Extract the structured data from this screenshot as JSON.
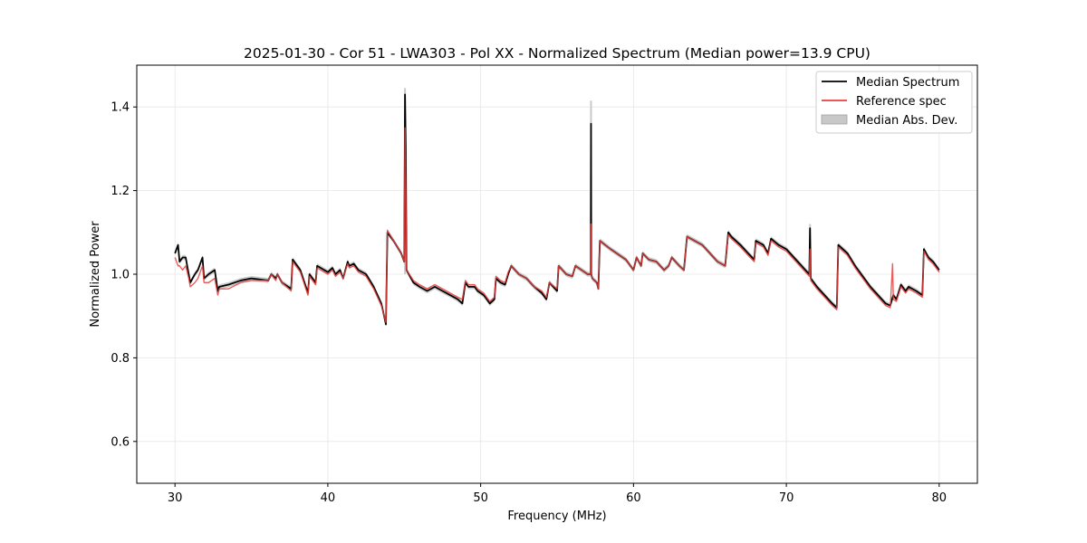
{
  "chart_data": {
    "type": "line",
    "title": "2025-01-30 - Cor 51 - LWA303 - Pol XX - Normalized Spectrum (Median power=13.9 CPU)",
    "xlabel": "Frequency (MHz)",
    "ylabel": "Normalized Power",
    "xlim": [
      27.5,
      82.5
    ],
    "ylim": [
      0.5,
      1.5
    ],
    "xticks": [
      30,
      40,
      50,
      60,
      70,
      80
    ],
    "yticks": [
      0.6,
      0.8,
      1.0,
      1.2,
      1.4
    ],
    "xtick_labels": [
      "30",
      "40",
      "50",
      "60",
      "70",
      "80"
    ],
    "ytick_labels": [
      "0.6",
      "0.8",
      "1.0",
      "1.2",
      "1.4"
    ],
    "grid": true,
    "legend_position": "top-right",
    "colors": {
      "median": "#000000",
      "reference": "#e8403c",
      "mad": "#c8c8c8"
    },
    "series": [
      {
        "name": "Median Spectrum",
        "x": [
          30.0,
          30.2,
          30.3,
          30.5,
          30.7,
          30.9,
          31.0,
          31.3,
          31.5,
          31.8,
          31.9,
          32.2,
          32.6,
          32.8,
          32.9,
          33.5,
          34.3,
          35.0,
          36.1,
          36.3,
          36.6,
          36.7,
          37.0,
          37.6,
          37.7,
          38.2,
          38.7,
          38.8,
          39.2,
          39.3,
          40.0,
          40.3,
          40.5,
          40.8,
          41.0,
          41.3,
          41.4,
          41.7,
          42.0,
          42.5,
          43.0,
          43.5,
          43.8,
          43.9,
          44.3,
          44.8,
          45.0,
          45.05,
          45.1,
          45.15,
          45.6,
          46.0,
          46.5,
          47.0,
          47.5,
          48.0,
          48.5,
          48.8,
          49.0,
          49.2,
          49.6,
          49.8,
          50.2,
          50.6,
          50.9,
          51.0,
          51.3,
          51.6,
          51.8,
          52.0,
          52.5,
          53.0,
          53.5,
          54.0,
          54.3,
          54.5,
          55.0,
          55.1,
          55.6,
          56.0,
          56.2,
          56.6,
          57.0,
          57.2,
          57.22,
          57.24,
          57.3,
          57.6,
          57.7,
          57.8,
          58.5,
          59.5,
          60.0,
          60.2,
          60.5,
          60.6,
          61.0,
          61.5,
          62.0,
          62.3,
          62.5,
          63.0,
          63.3,
          63.5,
          64.0,
          64.5,
          65.0,
          65.5,
          66.0,
          66.2,
          66.4,
          67.0,
          67.5,
          67.9,
          68.0,
          68.5,
          68.8,
          69.0,
          69.5,
          70.0,
          70.5,
          71.0,
          71.5,
          71.55,
          71.6,
          72.0,
          72.5,
          73.0,
          73.3,
          73.4,
          74.0,
          74.5,
          75.0,
          75.5,
          76.0,
          76.5,
          76.8,
          77.0,
          77.2,
          77.5,
          77.8,
          78.0,
          78.5,
          78.9,
          79.0,
          79.3,
          79.6,
          80.0
        ],
        "y": [
          1.05,
          1.07,
          1.03,
          1.04,
          1.04,
          1.0,
          0.98,
          1.0,
          1.01,
          1.04,
          0.99,
          1.0,
          1.01,
          0.96,
          0.97,
          0.975,
          0.985,
          0.99,
          0.985,
          1.0,
          0.99,
          1.0,
          0.98,
          0.965,
          1.035,
          1.01,
          0.955,
          1.0,
          0.98,
          1.02,
          1.005,
          1.015,
          1.0,
          1.01,
          0.99,
          1.03,
          1.02,
          1.025,
          1.01,
          1.0,
          0.97,
          0.93,
          0.88,
          1.1,
          1.08,
          1.05,
          1.03,
          1.43,
          1.3,
          1.01,
          0.98,
          0.97,
          0.96,
          0.97,
          0.96,
          0.95,
          0.94,
          0.93,
          0.98,
          0.97,
          0.97,
          0.96,
          0.95,
          0.93,
          0.94,
          0.99,
          0.98,
          0.975,
          1.0,
          1.02,
          1.0,
          0.99,
          0.97,
          0.955,
          0.94,
          0.98,
          0.96,
          1.02,
          1.0,
          0.995,
          1.02,
          1.01,
          1.0,
          1.0,
          1.36,
          1.0,
          0.99,
          0.98,
          0.965,
          1.08,
          1.06,
          1.035,
          1.01,
          1.04,
          1.02,
          1.05,
          1.035,
          1.03,
          1.01,
          1.02,
          1.04,
          1.02,
          1.01,
          1.09,
          1.08,
          1.07,
          1.05,
          1.03,
          1.02,
          1.1,
          1.09,
          1.07,
          1.05,
          1.035,
          1.08,
          1.07,
          1.05,
          1.085,
          1.07,
          1.06,
          1.04,
          1.02,
          1.0,
          1.11,
          0.99,
          0.97,
          0.95,
          0.93,
          0.92,
          1.07,
          1.05,
          1.02,
          0.995,
          0.97,
          0.95,
          0.93,
          0.925,
          0.95,
          0.94,
          0.975,
          0.96,
          0.97,
          0.96,
          0.95,
          1.06,
          1.04,
          1.03,
          1.01
        ]
      },
      {
        "name": "Reference spec",
        "x": [
          30.0,
          30.2,
          30.3,
          30.5,
          30.7,
          30.9,
          31.0,
          31.3,
          31.5,
          31.8,
          31.9,
          32.2,
          32.6,
          32.8,
          32.9,
          33.5,
          34.3,
          35.0,
          36.1,
          36.3,
          36.6,
          36.7,
          37.0,
          37.6,
          37.7,
          38.2,
          38.7,
          38.8,
          39.2,
          39.3,
          40.0,
          40.3,
          40.5,
          40.8,
          41.0,
          41.3,
          41.4,
          41.7,
          42.0,
          42.5,
          43.0,
          43.5,
          43.8,
          43.9,
          44.3,
          44.8,
          45.0,
          45.05,
          45.1,
          45.15,
          45.6,
          46.0,
          46.5,
          47.0,
          47.5,
          48.0,
          48.5,
          48.8,
          49.0,
          49.2,
          49.6,
          49.8,
          50.2,
          50.6,
          50.9,
          51.0,
          51.3,
          51.6,
          51.8,
          52.0,
          52.5,
          53.0,
          53.5,
          54.0,
          54.3,
          54.5,
          55.0,
          55.1,
          55.6,
          56.0,
          56.2,
          56.6,
          57.0,
          57.2,
          57.22,
          57.24,
          57.3,
          57.6,
          57.7,
          57.8,
          58.5,
          59.5,
          60.0,
          60.2,
          60.5,
          60.6,
          61.0,
          61.5,
          62.0,
          62.3,
          62.5,
          63.0,
          63.3,
          63.5,
          64.0,
          64.5,
          65.0,
          65.5,
          66.0,
          66.2,
          66.4,
          67.0,
          67.5,
          67.9,
          68.0,
          68.5,
          68.8,
          69.0,
          69.5,
          70.0,
          70.5,
          71.0,
          71.5,
          71.55,
          71.6,
          72.0,
          72.5,
          73.0,
          73.3,
          73.4,
          74.0,
          74.5,
          75.0,
          75.5,
          76.0,
          76.5,
          76.8,
          76.95,
          77.0,
          77.2,
          77.5,
          77.8,
          78.0,
          78.5,
          78.9,
          79.0,
          79.3,
          79.6,
          80.0
        ],
        "y": [
          1.04,
          1.02,
          1.02,
          1.01,
          1.02,
          0.99,
          0.97,
          0.98,
          0.99,
          1.02,
          0.98,
          0.98,
          0.99,
          0.95,
          0.965,
          0.965,
          0.98,
          0.985,
          0.985,
          1.0,
          0.985,
          1.0,
          0.98,
          0.96,
          1.03,
          1.005,
          0.95,
          0.995,
          0.975,
          1.015,
          1.0,
          1.01,
          0.995,
          1.005,
          0.99,
          1.025,
          1.015,
          1.02,
          1.005,
          0.995,
          0.965,
          0.925,
          0.885,
          1.105,
          1.08,
          1.05,
          1.03,
          1.35,
          1.2,
          1.01,
          0.985,
          0.975,
          0.965,
          0.975,
          0.965,
          0.955,
          0.945,
          0.94,
          0.985,
          0.975,
          0.975,
          0.965,
          0.955,
          0.935,
          0.945,
          0.995,
          0.985,
          0.98,
          1.005,
          1.02,
          1.0,
          0.99,
          0.97,
          0.96,
          0.945,
          0.98,
          0.965,
          1.02,
          1.0,
          0.995,
          1.02,
          1.01,
          1.0,
          1.0,
          1.12,
          1.0,
          0.99,
          0.98,
          0.965,
          1.08,
          1.06,
          1.035,
          1.01,
          1.04,
          1.02,
          1.05,
          1.035,
          1.03,
          1.01,
          1.02,
          1.04,
          1.02,
          1.01,
          1.09,
          1.08,
          1.07,
          1.05,
          1.03,
          1.02,
          1.095,
          1.085,
          1.065,
          1.045,
          1.03,
          1.075,
          1.065,
          1.045,
          1.08,
          1.065,
          1.055,
          1.035,
          1.015,
          0.995,
          1.06,
          0.985,
          0.965,
          0.945,
          0.925,
          0.915,
          1.065,
          1.045,
          1.015,
          0.99,
          0.965,
          0.945,
          0.925,
          0.92,
          1.025,
          0.94,
          0.935,
          0.97,
          0.955,
          0.965,
          0.955,
          0.945,
          1.055,
          1.035,
          1.025,
          1.005
        ]
      }
    ],
    "mad_band": {
      "name": "Median Abs. Dev.",
      "half_width": 0.006
    },
    "spike_bands": [
      {
        "x": 45.05,
        "y_max": 1.445
      },
      {
        "x": 57.22,
        "y_max": 1.415
      },
      {
        "x": 71.55,
        "y_max": 1.12
      }
    ]
  },
  "legend": {
    "items": [
      {
        "label": "Median Spectrum"
      },
      {
        "label": "Reference spec"
      },
      {
        "label": "Median Abs. Dev."
      }
    ]
  }
}
